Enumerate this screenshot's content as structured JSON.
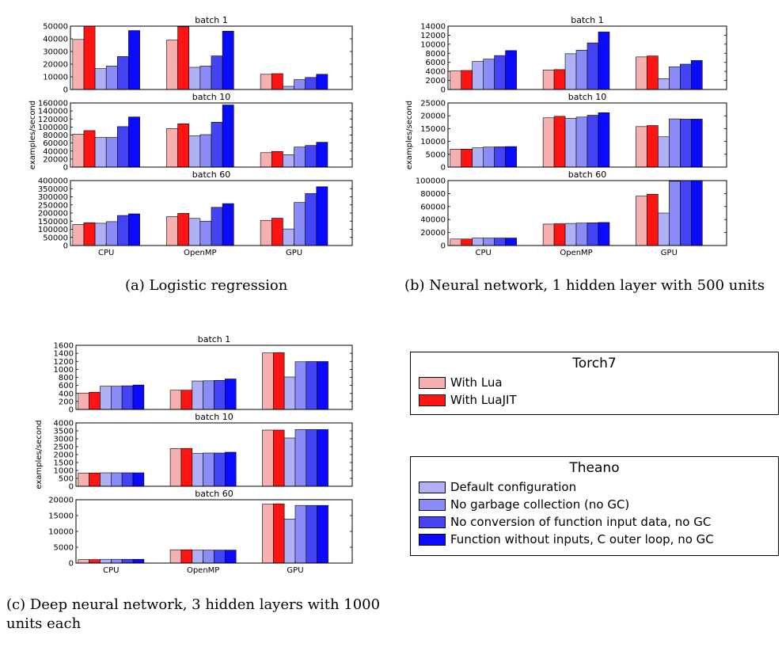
{
  "colors": [
    "#f7b0b0",
    "#ff1414",
    "#b0b0f7",
    "#8c8cf9",
    "#4444f4",
    "#0a0aff"
  ],
  "groups": [
    "CPU",
    "OpenMP",
    "GPU"
  ],
  "chart_data": [
    {
      "type": "bar",
      "caption": "(a) Logistic regression",
      "ylabel": "examples/second",
      "panels": [
        {
          "title": "batch 1",
          "ylim": [
            0,
            50000
          ],
          "ticks": [
            0,
            10000,
            20000,
            30000,
            40000,
            50000
          ],
          "values": [
            [
              39500,
              50000,
              16500,
              18500,
              26000,
              46500
            ],
            [
              39000,
              49500,
              17500,
              18500,
              26500,
              46000
            ],
            [
              12000,
              12500,
              2500,
              7800,
              9500,
              12000
            ]
          ]
        },
        {
          "title": "batch 10",
          "ylim": [
            0,
            160000
          ],
          "ticks": [
            0,
            20000,
            40000,
            60000,
            80000,
            100000,
            120000,
            140000,
            160000
          ],
          "values": [
            [
              82000,
              91000,
              74000,
              74000,
              101000,
              125000
            ],
            [
              96000,
              108000,
              78000,
              81000,
              112000,
              155000
            ],
            [
              36000,
              39000,
              31000,
              50000,
              54000,
              62000
            ]
          ]
        },
        {
          "title": "batch 60",
          "ylim": [
            0,
            400000
          ],
          "ticks": [
            0,
            50000,
            100000,
            150000,
            200000,
            250000,
            300000,
            350000,
            400000
          ],
          "values": [
            [
              130000,
              140000,
              137000,
              147000,
              185000,
              195000
            ],
            [
              178000,
              198000,
              167000,
              150000,
              235000,
              258000
            ],
            [
              155000,
              168000,
              102000,
              265000,
              320000,
              362000
            ]
          ]
        }
      ]
    },
    {
      "type": "bar",
      "caption": "(b) Neural network, 1 hidden layer with 500 units",
      "ylabel": "examples/second",
      "panels": [
        {
          "title": "batch 1",
          "ylim": [
            0,
            14000
          ],
          "ticks": [
            0,
            2000,
            4000,
            6000,
            8000,
            10000,
            12000,
            14000
          ],
          "values": [
            [
              4100,
              4200,
              6200,
              6700,
              7500,
              8600
            ],
            [
              4300,
              4400,
              7900,
              8700,
              10300,
              12700
            ],
            [
              7200,
              7400,
              2400,
              5000,
              5600,
              6400
            ]
          ]
        },
        {
          "title": "batch 10",
          "ylim": [
            0,
            25000
          ],
          "ticks": [
            0,
            5000,
            10000,
            15000,
            20000,
            25000
          ],
          "values": [
            [
              7000,
              7000,
              7500,
              7800,
              7900,
              8000
            ],
            [
              19200,
              19800,
              19000,
              19500,
              20200,
              21200
            ],
            [
              15800,
              16200,
              11800,
              18800,
              18700,
              18700
            ]
          ]
        },
        {
          "title": "batch 60",
          "ylim": [
            0,
            100000
          ],
          "ticks": [
            0,
            20000,
            40000,
            60000,
            80000,
            100000
          ],
          "values": [
            [
              10000,
              10000,
              11500,
              11500,
              11500,
              11500
            ],
            [
              33000,
              33500,
              34000,
              34500,
              35000,
              35500
            ],
            [
              76000,
              79000,
              50000,
              99000,
              100000,
              100000
            ]
          ]
        }
      ]
    },
    {
      "type": "bar",
      "caption": "(c) Deep neural network, 3 hidden layers with 1000 units each",
      "ylabel": "examples/second",
      "panels": [
        {
          "title": "batch 1",
          "ylim": [
            0,
            1600
          ],
          "ticks": [
            0,
            200,
            400,
            600,
            800,
            1000,
            1200,
            1400,
            1600
          ],
          "values": [
            [
              410,
              430,
              580,
              580,
              590,
              610
            ],
            [
              480,
              480,
              710,
              715,
              725,
              760
            ],
            [
              1410,
              1415,
              810,
              1190,
              1195,
              1195
            ]
          ]
        },
        {
          "title": "batch 10",
          "ylim": [
            0,
            4000
          ],
          "ticks": [
            0,
            500,
            1000,
            1500,
            2000,
            2500,
            3000,
            3500,
            4000
          ],
          "values": [
            [
              840,
              840,
              850,
              850,
              850,
              850
            ],
            [
              2380,
              2390,
              2070,
              2100,
              2100,
              2150
            ],
            [
              3550,
              3550,
              3050,
              3580,
              3580,
              3580
            ]
          ]
        },
        {
          "title": "batch 60",
          "ylim": [
            0,
            20000
          ],
          "ticks": [
            0,
            5000,
            10000,
            15000,
            20000
          ],
          "values": [
            [
              1100,
              1100,
              1200,
              1200,
              1200,
              1200
            ],
            [
              4200,
              4200,
              4100,
              4100,
              4100,
              4100
            ],
            [
              18600,
              18700,
              13900,
              18200,
              18200,
              18200
            ]
          ]
        }
      ]
    }
  ],
  "legends": {
    "torch": {
      "title": "Torch7",
      "items": [
        "With Lua",
        "With LuaJIT"
      ]
    },
    "theano": {
      "title": "Theano",
      "items": [
        "Default configuration",
        "No garbage collection (no GC)",
        "No conversion of function input data, no GC",
        "Function without inputs, C outer loop, no GC"
      ]
    }
  }
}
